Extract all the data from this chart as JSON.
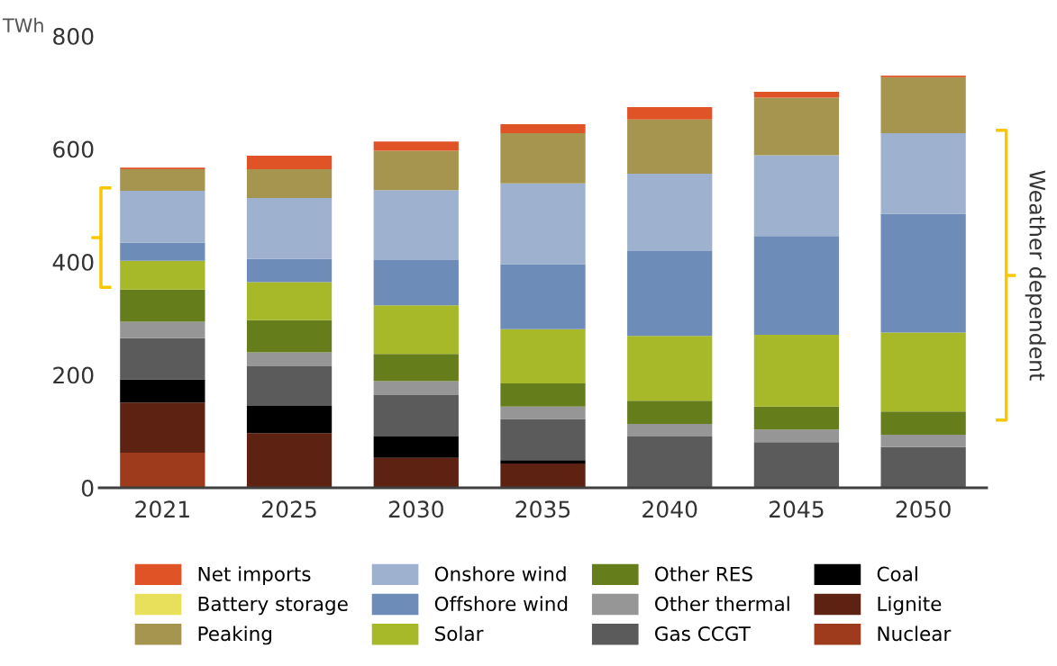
{
  "chart_data": {
    "type": "bar",
    "stacked": true,
    "ylabel": "TWh",
    "categories": [
      "2021",
      "2025",
      "2030",
      "2035",
      "2040",
      "2045",
      "2050"
    ],
    "ylim": [
      0,
      800
    ],
    "yticks": [
      0,
      200,
      400,
      600,
      800
    ],
    "grid": false,
    "legend": "bottom",
    "annotations": [
      "Weather dependent"
    ],
    "series": [
      {
        "name": "Nuclear",
        "color": "#9e3b1c",
        "values": [
          62,
          0,
          0,
          0,
          0,
          0,
          0
        ]
      },
      {
        "name": "Lignite",
        "color": "#5e2212",
        "values": [
          89,
          97,
          53,
          43,
          0,
          0,
          0
        ]
      },
      {
        "name": "Coal",
        "color": "#000000",
        "values": [
          41,
          48,
          38,
          6,
          0,
          0,
          0
        ]
      },
      {
        "name": "Gas CCGT",
        "color": "#5b5b5b",
        "values": [
          73,
          70,
          73,
          73,
          91,
          81,
          72
        ]
      },
      {
        "name": "Other thermal",
        "color": "#969696",
        "values": [
          29,
          25,
          25,
          22,
          22,
          22,
          22
        ]
      },
      {
        "name": "Other RES",
        "color": "#667d1c",
        "values": [
          57,
          57,
          48,
          41,
          41,
          41,
          41
        ]
      },
      {
        "name": "Solar",
        "color": "#a7b828",
        "values": [
          51,
          67,
          86,
          96,
          115,
          127,
          140
        ]
      },
      {
        "name": "Offshore wind",
        "color": "#6e8cb8",
        "values": [
          32,
          41,
          80,
          115,
          150,
          175,
          210
        ]
      },
      {
        "name": "Onshore wind",
        "color": "#9eb1cf",
        "values": [
          92,
          108,
          124,
          143,
          137,
          143,
          143
        ]
      },
      {
        "name": "Peaking",
        "color": "#a6954f",
        "values": [
          38,
          51,
          70,
          89,
          96,
          102,
          99
        ]
      },
      {
        "name": "Battery storage",
        "color": "#e8e05a",
        "values": [
          0,
          0,
          0,
          0,
          0,
          0,
          0
        ]
      },
      {
        "name": "Net imports",
        "color": "#e05327",
        "values": [
          3,
          24,
          16,
          16,
          22,
          10,
          3
        ]
      }
    ]
  }
}
